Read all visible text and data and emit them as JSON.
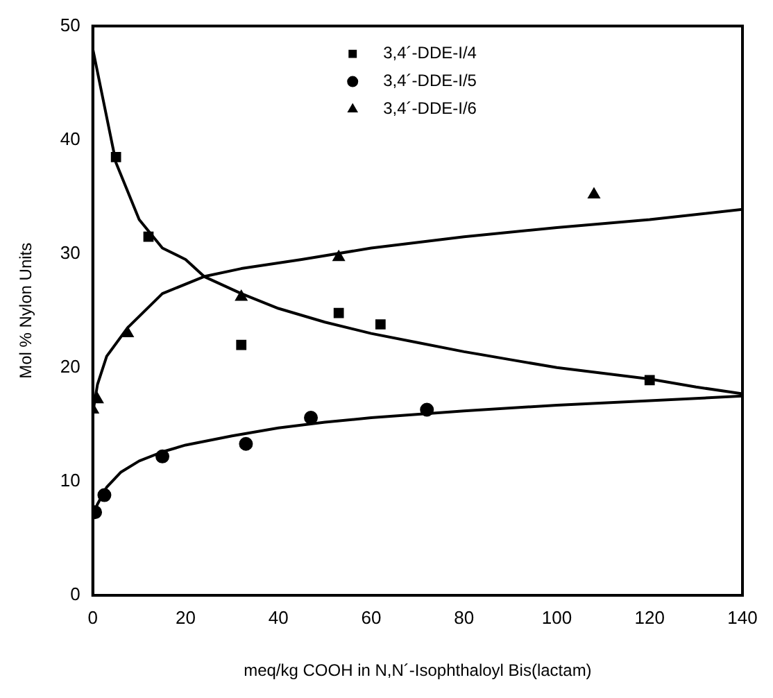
{
  "chart_data": {
    "type": "scatter",
    "xlabel": "meq/kg COOH in N,N´-Isophthaloyl Bis(lactam)",
    "ylabel": "Mol % Nylon Units",
    "xlim": [
      0,
      140
    ],
    "xticks": [
      0,
      20,
      40,
      60,
      80,
      100,
      120,
      140
    ],
    "ylim": [
      0,
      50
    ],
    "yticks": [
      0,
      10,
      20,
      30,
      40,
      50
    ],
    "grid": false,
    "legend": "top",
    "series": [
      {
        "name": "3,4´-DDE-I/4",
        "color": "#000000",
        "marker": "square",
        "x": [
          5,
          12,
          32,
          53,
          62,
          120
        ],
        "values": [
          38.5,
          31.5,
          22,
          24.8,
          23.8,
          18.9
        ]
      },
      {
        "name": "3,4´-DDE-I/5",
        "color": "#000000",
        "marker": "circle",
        "x": [
          0.5,
          2.5,
          15,
          33,
          47,
          72
        ],
        "values": [
          7.3,
          8.8,
          12.2,
          13.3,
          15.6,
          16.3
        ]
      },
      {
        "name": "3,4´-DDE-I/6",
        "color": "#000000",
        "marker": "triangle",
        "x": [
          0,
          1,
          7.5,
          32,
          53,
          108
        ],
        "values": [
          16.3,
          17.2,
          23,
          26.2,
          29.7,
          35.2
        ]
      },
      {
        "type": "line",
        "color": "#000000",
        "marker": "none",
        "x": [
          0,
          2,
          5,
          10,
          15,
          20,
          24,
          32,
          40,
          50,
          60,
          70,
          80,
          90,
          100,
          110,
          120,
          130,
          140
        ],
        "values": [
          48,
          44,
          38,
          33,
          30.5,
          29.5,
          28,
          26.5,
          25.2,
          24,
          23,
          22.2,
          21.4,
          20.7,
          20,
          19.5,
          19,
          18.3,
          17.7
        ]
      },
      {
        "type": "line",
        "color": "#000000",
        "marker": "none",
        "x": [
          0,
          1,
          3,
          6,
          10,
          15,
          20,
          30,
          40,
          50,
          60,
          80,
          100,
          120,
          140
        ],
        "values": [
          7,
          8,
          9.5,
          10.8,
          11.8,
          12.6,
          13.2,
          14,
          14.7,
          15.2,
          15.6,
          16.2,
          16.7,
          17.1,
          17.5
        ]
      },
      {
        "type": "line",
        "color": "#000000",
        "marker": "none",
        "x": [
          0,
          1,
          3,
          7.5,
          15,
          24,
          32,
          45,
          60,
          80,
          100,
          120,
          140
        ],
        "values": [
          16,
          18.5,
          21,
          23.5,
          26.5,
          28,
          28.7,
          29.5,
          30.5,
          31.5,
          32.3,
          33,
          33.9
        ]
      }
    ]
  }
}
